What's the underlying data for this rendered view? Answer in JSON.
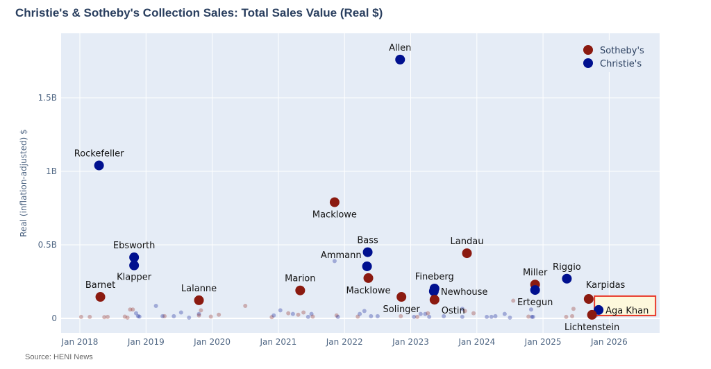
{
  "chart_data": {
    "type": "scatter",
    "title": "Christie's & Sotheby's Collection Sales: Total Sales Value (Real $)",
    "ylabel": "Real (inflation-adjusted) $",
    "xlabel": "",
    "source": "Source: HENI News",
    "xlim": [
      "2017-09",
      "2026-10"
    ],
    "ylim": [
      -0.1,
      1.94
    ],
    "y_unit": "billion USD",
    "x_ticks": [
      "Jan 2018",
      "Jan 2019",
      "Jan 2020",
      "Jan 2021",
      "Jan 2022",
      "Jan 2023",
      "Jan 2024",
      "Jan 2025",
      "Jan 2026"
    ],
    "y_ticks": [
      {
        "value": 0,
        "label": "0"
      },
      {
        "value": 0.5,
        "label": "0.5B"
      },
      {
        "value": 1,
        "label": "1B"
      },
      {
        "value": 1.5,
        "label": "1.5B"
      }
    ],
    "grid": true,
    "legend": {
      "placement": "top-right",
      "entries": [
        {
          "name": "Sotheby's",
          "color": "#8b1a10"
        },
        {
          "name": "Christie's",
          "color": "#00108f"
        }
      ]
    },
    "colors": {
      "Sotheby's": "#8b1a10",
      "Christie's": "#00108f",
      "plot_bg": "#e5ecf6",
      "highlight_border": "#e8392a",
      "highlight_fill": "#fdf8dc"
    },
    "highlight": "Aga Khan",
    "labeled_points": [
      {
        "name": "Rockefeller",
        "house": "Christie's",
        "date": 2018.29,
        "value": 1.04
      },
      {
        "name": "Barnet",
        "house": "Sotheby's",
        "date": 2018.31,
        "value": 0.146
      },
      {
        "name": "Ebsworth",
        "house": "Christie's",
        "date": 2018.82,
        "value": 0.415
      },
      {
        "name": "Klapper",
        "house": "Christie's",
        "date": 2018.82,
        "value": 0.36
      },
      {
        "name": "Lalanne",
        "house": "Sotheby's",
        "date": 2019.8,
        "value": 0.123
      },
      {
        "name": "Marion",
        "house": "Sotheby's",
        "date": 2021.33,
        "value": 0.19
      },
      {
        "name": "Macklowe",
        "house": "Sotheby's",
        "date": 2021.85,
        "value": 0.79
      },
      {
        "name": "Bass",
        "house": "Christie's",
        "date": 2022.35,
        "value": 0.45
      },
      {
        "name": "Ammann",
        "house": "Christie's",
        "date": 2022.34,
        "value": 0.354
      },
      {
        "name": "Macklowe",
        "house": "Sotheby's",
        "date": 2022.36,
        "value": 0.274
      },
      {
        "name": "Allen",
        "house": "Christie's",
        "date": 2022.84,
        "value": 1.76
      },
      {
        "name": "Solinger",
        "house": "Sotheby's",
        "date": 2022.86,
        "value": 0.146
      },
      {
        "name": "Fineberg",
        "house": "Christie's",
        "date": 2023.36,
        "value": 0.203
      },
      {
        "name": "Newhouse",
        "house": "Christie's",
        "date": 2023.35,
        "value": 0.184
      },
      {
        "name": "Ostin",
        "house": "Sotheby's",
        "date": 2023.36,
        "value": 0.127
      },
      {
        "name": "Landau",
        "house": "Sotheby's",
        "date": 2023.85,
        "value": 0.443
      },
      {
        "name": "Miller",
        "house": "Sotheby's",
        "date": 2024.88,
        "value": 0.23
      },
      {
        "name": "Ertegun",
        "house": "Christie's",
        "date": 2024.88,
        "value": 0.193
      },
      {
        "name": "Riggio",
        "house": "Christie's",
        "date": 2025.36,
        "value": 0.27
      },
      {
        "name": "Karpidas",
        "house": "Sotheby's",
        "date": 2025.69,
        "value": 0.132
      },
      {
        "name": "Aga Khan",
        "house": "Christie's",
        "date": 2025.84,
        "value": 0.057
      },
      {
        "name": "Lichtenstein",
        "house": "Sotheby's",
        "date": 2025.74,
        "value": 0.024
      }
    ],
    "other_points": [
      [
        "S",
        2018.02,
        0.01
      ],
      [
        "S",
        2018.15,
        0.01
      ],
      [
        "S",
        2018.37,
        0.008
      ],
      [
        "S",
        2018.42,
        0.01
      ],
      [
        "S",
        2018.68,
        0.012
      ],
      [
        "S",
        2018.8,
        0.06
      ],
      [
        "S",
        2018.76,
        0.06
      ],
      [
        "S",
        2018.72,
        0.005
      ],
      [
        "C",
        2018.85,
        0.035
      ],
      [
        "C",
        2018.88,
        0.015
      ],
      [
        "C",
        2018.9,
        0.012
      ],
      [
        "C",
        2019.15,
        0.085
      ],
      [
        "S",
        2019.28,
        0.015
      ],
      [
        "C",
        2019.25,
        0.015
      ],
      [
        "C",
        2019.42,
        0.015
      ],
      [
        "C",
        2019.53,
        0.04
      ],
      [
        "C",
        2019.65,
        0.005
      ],
      [
        "C",
        2019.8,
        0.03
      ],
      [
        "S",
        2019.83,
        0.055
      ],
      [
        "S",
        2019.8,
        0.02
      ],
      [
        "S",
        2019.98,
        0.012
      ],
      [
        "S",
        2020.1,
        0.025
      ],
      [
        "S",
        2020.5,
        0.085
      ],
      [
        "S",
        2020.9,
        0.008
      ],
      [
        "C",
        2020.93,
        0.02
      ],
      [
        "C",
        2021.03,
        0.055
      ],
      [
        "S",
        2021.15,
        0.035
      ],
      [
        "C",
        2021.22,
        0.03
      ],
      [
        "S",
        2021.3,
        0.025
      ],
      [
        "S",
        2021.38,
        0.04
      ],
      [
        "C",
        2021.45,
        0.01
      ],
      [
        "C",
        2021.5,
        0.03
      ],
      [
        "S",
        2021.52,
        0.012
      ],
      [
        "C",
        2021.85,
        0.39
      ],
      [
        "S",
        2021.88,
        0.02
      ],
      [
        "C",
        2021.9,
        0.01
      ],
      [
        "S",
        2022.2,
        0.012
      ],
      [
        "C",
        2022.23,
        0.03
      ],
      [
        "C",
        2022.3,
        0.05
      ],
      [
        "C",
        2022.4,
        0.015
      ],
      [
        "C",
        2022.5,
        0.015
      ],
      [
        "S",
        2022.85,
        0.015
      ],
      [
        "C",
        2023.05,
        0.01
      ],
      [
        "S",
        2023.1,
        0.01
      ],
      [
        "C",
        2023.15,
        0.03
      ],
      [
        "C",
        2023.22,
        0.03
      ],
      [
        "S",
        2023.26,
        0.035
      ],
      [
        "C",
        2023.28,
        0.01
      ],
      [
        "C",
        2023.5,
        0.015
      ],
      [
        "C",
        2023.78,
        0.065
      ],
      [
        "S",
        2023.82,
        0.05
      ],
      [
        "C",
        2023.78,
        0.01
      ],
      [
        "S",
        2023.95,
        0.035
      ],
      [
        "C",
        2024.15,
        0.01
      ],
      [
        "C",
        2024.22,
        0.01
      ],
      [
        "C",
        2024.28,
        0.015
      ],
      [
        "C",
        2024.42,
        0.03
      ],
      [
        "C",
        2024.5,
        0.005
      ],
      [
        "S",
        2024.55,
        0.12
      ],
      [
        "S",
        2024.78,
        0.012
      ],
      [
        "C",
        2024.82,
        0.06
      ],
      [
        "C",
        2024.83,
        0.01
      ],
      [
        "C",
        2024.85,
        0.01
      ],
      [
        "S",
        2025.35,
        0.01
      ],
      [
        "S",
        2025.44,
        0.015
      ],
      [
        "S",
        2025.46,
        0.065
      ],
      [
        "C",
        2025.8,
        0.02
      ]
    ]
  }
}
